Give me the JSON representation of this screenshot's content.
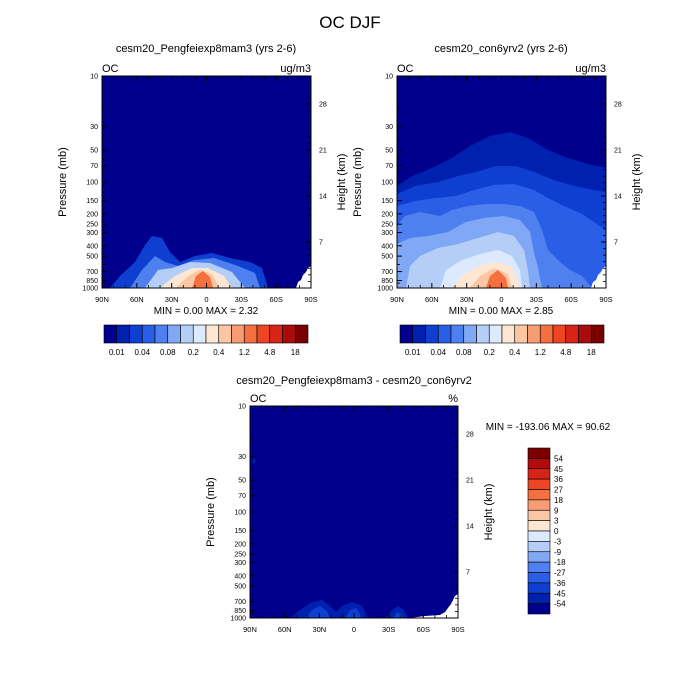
{
  "title": "OC DJF",
  "panels": [
    {
      "id": "p1",
      "title": "cesm20_Pengfeiexp8mam3 (yrs 2-6)",
      "left_label": "OC",
      "right_label": "ug/m3",
      "stats": "MIN =   0.00  MAX =   2.32"
    },
    {
      "id": "p2",
      "title": "cesm20_con6yrv2 (yrs 2-6)",
      "left_label": "OC",
      "right_label": "ug/m3",
      "stats": "MIN =   0.00  MAX =   2.85"
    },
    {
      "id": "p3",
      "title": "cesm20_Pengfeiexp8mam3 - cesm20_con6yrv2",
      "left_label": "OC",
      "right_label": "%",
      "stats": "MIN = -193.06  MAX =  90.62"
    }
  ],
  "axes": {
    "ylabel": "Pressure (mb)",
    "ylabel_right": "Height (km)",
    "x_ticks": [
      "90N",
      "60N",
      "30N",
      "0",
      "30S",
      "60S",
      "90S"
    ],
    "y_ticks": [
      "10",
      "30",
      "50",
      "70",
      "100",
      "150",
      "200",
      "250",
      "300",
      "400",
      "500",
      "700",
      "850",
      "1000"
    ],
    "y_right_ticks": [
      "28",
      "21",
      "14",
      "7"
    ]
  },
  "colorbar_horizontal": {
    "colors": [
      "#00008c",
      "#0020b0",
      "#0f3fd0",
      "#2a5ee6",
      "#4f80f0",
      "#80a8f4",
      "#b4cef8",
      "#dde9fc",
      "#fde6d2",
      "#fbc6a4",
      "#f89c74",
      "#f5703f",
      "#ee4624",
      "#d82416",
      "#aa0c0c",
      "#7a0000"
    ],
    "labels": [
      "0.01",
      "0.04",
      "0.08",
      "0.2",
      "0.4",
      "1.2",
      "4.8",
      "18"
    ]
  },
  "colorbar_vertical": {
    "labels": [
      "54",
      "45",
      "36",
      "27",
      "18",
      "9",
      "3",
      "0",
      "-3",
      "-9",
      "-18",
      "-27",
      "-36",
      "-45",
      "-54"
    ],
    "colors": [
      "#7a0000",
      "#b20b0b",
      "#d82416",
      "#ee4624",
      "#f5703f",
      "#f89c74",
      "#fbc6a4",
      "#fde6d2",
      "#dde9fc",
      "#b4cef8",
      "#80a8f4",
      "#4f80f0",
      "#2a5ee6",
      "#0f3fd0",
      "#0020b0",
      "#00008c"
    ]
  },
  "chart_data": [
    {
      "type": "heatmap",
      "title": "cesm20_Pengfeiexp8mam3 (yrs 2-6)",
      "variable": "OC",
      "units": "ug/m3",
      "xlabel": "",
      "ylabel": "Pressure (mb)",
      "y2label": "Height (km)",
      "x_ticks": [
        "90N",
        "60N",
        "30N",
        "0",
        "30S",
        "60S",
        "90S"
      ],
      "y_ticks": [
        10,
        30,
        50,
        70,
        100,
        150,
        200,
        250,
        300,
        400,
        500,
        700,
        850,
        1000
      ],
      "ylim": [
        1000,
        10
      ],
      "y_scale": "log",
      "min": 0.0,
      "max": 2.32,
      "contour_levels": [
        0.01,
        0.02,
        0.04,
        0.06,
        0.08,
        0.1,
        0.2,
        0.3,
        0.4,
        0.8,
        1.2,
        2.4,
        4.8,
        9,
        18
      ]
    },
    {
      "type": "heatmap",
      "title": "cesm20_con6yrv2 (yrs 2-6)",
      "variable": "OC",
      "units": "ug/m3",
      "xlabel": "",
      "ylabel": "Pressure (mb)",
      "y2label": "Height (km)",
      "x_ticks": [
        "90N",
        "60N",
        "30N",
        "0",
        "30S",
        "60S",
        "90S"
      ],
      "y_ticks": [
        10,
        30,
        50,
        70,
        100,
        150,
        200,
        250,
        300,
        400,
        500,
        700,
        850,
        1000
      ],
      "ylim": [
        1000,
        10
      ],
      "y_scale": "log",
      "min": 0.0,
      "max": 2.85
    },
    {
      "type": "heatmap",
      "title": "cesm20_Pengfeiexp8mam3 - cesm20_con6yrv2",
      "variable": "OC",
      "units": "%",
      "xlabel": "",
      "ylabel": "Pressure (mb)",
      "y2label": "Height (km)",
      "x_ticks": [
        "90N",
        "60N",
        "30N",
        "0",
        "30S",
        "60S",
        "90S"
      ],
      "y_ticks": [
        10,
        30,
        50,
        70,
        100,
        150,
        200,
        250,
        300,
        400,
        500,
        700,
        850,
        1000
      ],
      "ylim": [
        1000,
        10
      ],
      "y_scale": "log",
      "min": -193.06,
      "max": 90.62,
      "contour_levels": [
        -54,
        -45,
        -36,
        -27,
        -18,
        -9,
        -3,
        0,
        3,
        9,
        18,
        27,
        36,
        45,
        54
      ]
    }
  ]
}
